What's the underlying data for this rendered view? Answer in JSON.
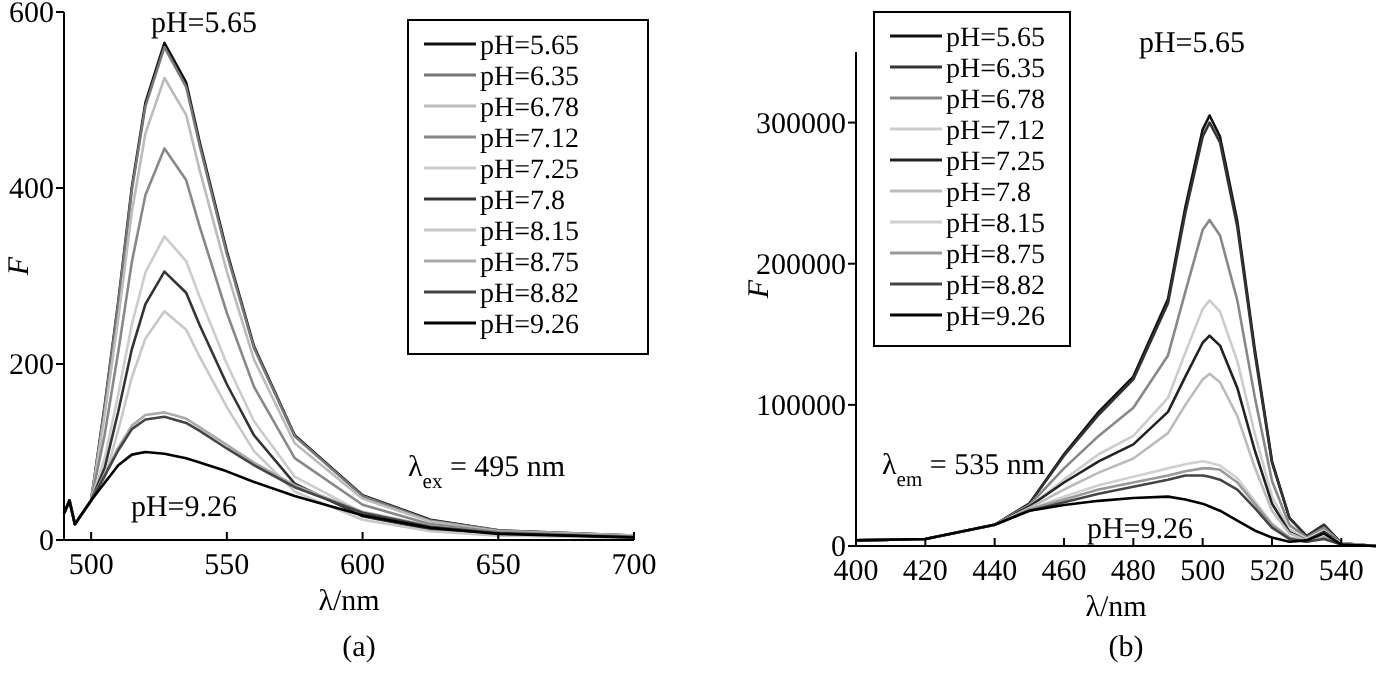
{
  "chart_data": [
    {
      "type": "line",
      "title": "(a)",
      "xlabel": "λ/nm",
      "ylabel": "F",
      "xlim": [
        490,
        700
      ],
      "xticks": [
        500,
        550,
        600,
        650,
        700
      ],
      "ylim": [
        0,
        600
      ],
      "yticks": [
        0,
        200,
        400,
        600
      ],
      "legend": "top right",
      "grid": false,
      "marker": "none",
      "line_style": "solid",
      "x": [
        490,
        492,
        494,
        500,
        505,
        510,
        515,
        520,
        527,
        535,
        540,
        550,
        560,
        575,
        600,
        625,
        650,
        700
      ],
      "series": [
        {
          "name": "pH=5.65",
          "color": "#111111",
          "values": [
            30,
            45,
            18,
            45,
            153,
            271,
            401,
            497,
            565,
            520,
            452,
            328,
            220,
            119,
            51,
            23,
            11,
            5
          ]
        },
        {
          "name": "pH=6.35",
          "color": "#777777",
          "values": [
            30,
            45,
            18,
            45,
            151,
            269,
            398,
            493,
            560,
            515,
            448,
            325,
            218,
            118,
            50,
            22,
            11,
            5
          ]
        },
        {
          "name": "pH=6.78",
          "color": "#bbbbbb",
          "values": [
            30,
            45,
            18,
            45,
            142,
            252,
            373,
            462,
            525,
            483,
            420,
            305,
            205,
            110,
            47,
            21,
            10,
            5
          ]
        },
        {
          "name": "pH=7.12",
          "color": "#888888",
          "values": [
            30,
            45,
            18,
            45,
            120,
            214,
            316,
            392,
            445,
            409,
            356,
            258,
            174,
            93,
            40,
            18,
            9,
            4
          ]
        },
        {
          "name": "pH=7.25",
          "color": "#cccccc",
          "values": [
            30,
            45,
            18,
            45,
            93,
            166,
            245,
            304,
            345,
            317,
            276,
            200,
            135,
            72,
            31,
            14,
            7,
            3
          ]
        },
        {
          "name": "pH=7.8",
          "color": "#333333",
          "values": [
            30,
            45,
            18,
            45,
            82,
            146,
            217,
            268,
            305,
            281,
            244,
            177,
            119,
            64,
            27,
            12,
            6,
            3
          ]
        },
        {
          "name": "pH=8.15",
          "color": "#c8c8c8",
          "values": [
            30,
            45,
            18,
            45,
            70,
            125,
            185,
            229,
            260,
            239,
            208,
            151,
            101,
            55,
            23,
            10,
            5,
            2
          ]
        },
        {
          "name": "pH=8.75",
          "color": "#aaaaaa",
          "values": [
            30,
            45,
            18,
            45,
            75,
            105,
            130,
            142,
            145,
            138,
            128,
            108,
            88,
            62,
            32,
            16,
            8,
            3
          ]
        },
        {
          "name": "pH=8.82",
          "color": "#444444",
          "values": [
            30,
            45,
            18,
            45,
            73,
            102,
            126,
            137,
            140,
            133,
            124,
            104,
            85,
            60,
            31,
            15,
            8,
            3
          ]
        },
        {
          "name": "pH=9.26",
          "color": "#000000",
          "values": [
            30,
            45,
            18,
            45,
            65,
            85,
            97,
            100,
            98,
            93,
            88,
            78,
            66,
            50,
            28,
            14,
            7,
            3
          ]
        }
      ],
      "annotations": [
        "pH=5.65",
        "pH=9.26",
        "λ$_{ex}$= 495 nm"
      ]
    },
    {
      "type": "line",
      "title": "(b)",
      "xlabel": "λ/nm",
      "ylabel": "F",
      "xlim": [
        400,
        550
      ],
      "xticks": [
        400,
        420,
        440,
        460,
        480,
        500,
        520,
        540
      ],
      "ylim": [
        0,
        350000
      ],
      "yticks": [
        0,
        100000,
        200000,
        300000
      ],
      "legend": "top left",
      "grid": false,
      "marker": "none",
      "line_style": "solid",
      "x": [
        400,
        420,
        440,
        450,
        460,
        470,
        480,
        490,
        495,
        500,
        502,
        505,
        510,
        515,
        520,
        525,
        530,
        535,
        540,
        550
      ],
      "series": [
        {
          "name": "pH=5.65",
          "color": "#111111",
          "values": [
            4000,
            5000,
            15000,
            30000,
            65000,
            95000,
            120000,
            175000,
            240000,
            295000,
            305000,
            290000,
            230000,
            140000,
            60000,
            20000,
            7000,
            15000,
            2000,
            0
          ]
        },
        {
          "name": "pH=6.35",
          "color": "#333333",
          "values": [
            4000,
            5000,
            15000,
            30000,
            64000,
            93000,
            118000,
            172000,
            236000,
            290000,
            300000,
            286000,
            226000,
            137000,
            59000,
            20000,
            7000,
            15000,
            2000,
            0
          ]
        },
        {
          "name": "pH=6.78",
          "color": "#888888",
          "values": [
            4000,
            5000,
            15000,
            29000,
            55000,
            78000,
            98000,
            135000,
            180000,
            224000,
            231000,
            220000,
            174000,
            106000,
            46000,
            15000,
            6000,
            13000,
            2000,
            0
          ]
        },
        {
          "name": "pH=7.12",
          "color": "#cccccc",
          "values": [
            4000,
            5000,
            15000,
            28000,
            47000,
            65000,
            78000,
            105000,
            137000,
            168000,
            174000,
            166000,
            131000,
            80000,
            35000,
            12000,
            5000,
            11000,
            2000,
            0
          ]
        },
        {
          "name": "pH=7.25",
          "color": "#222222",
          "values": [
            4000,
            5000,
            15000,
            28000,
            45000,
            60000,
            72000,
            95000,
            120000,
            144000,
            149000,
            142000,
            112000,
            68000,
            30000,
            10000,
            4000,
            10000,
            2000,
            0
          ]
        },
        {
          "name": "pH=7.8",
          "color": "#bbbbbb",
          "values": [
            4000,
            5000,
            15000,
            27000,
            40000,
            52000,
            62000,
            80000,
            100000,
            118000,
            122000,
            116000,
            92000,
            56000,
            25000,
            9000,
            4000,
            9000,
            2000,
            0
          ]
        },
        {
          "name": "pH=8.15",
          "color": "#d0d0d0",
          "values": [
            4000,
            5000,
            15000,
            26000,
            35000,
            43000,
            49000,
            55000,
            58000,
            60000,
            59000,
            57000,
            48000,
            32000,
            16000,
            6000,
            3000,
            7000,
            1000,
            0
          ]
        },
        {
          "name": "pH=8.75",
          "color": "#999999",
          "values": [
            4000,
            5000,
            15000,
            26000,
            33000,
            40000,
            45000,
            50000,
            53000,
            55000,
            55000,
            54000,
            45000,
            30000,
            15000,
            6000,
            3000,
            6000,
            1000,
            0
          ]
        },
        {
          "name": "pH=8.82",
          "color": "#444444",
          "values": [
            4000,
            5000,
            15000,
            25000,
            31000,
            37000,
            42000,
            47000,
            50000,
            50000,
            49000,
            47000,
            40000,
            27000,
            13000,
            5000,
            3000,
            5000,
            1000,
            0
          ]
        },
        {
          "name": "pH=9.26",
          "color": "#000000",
          "values": [
            4000,
            5000,
            15000,
            25000,
            29000,
            32000,
            34000,
            35000,
            33000,
            30000,
            28000,
            25000,
            18000,
            11000,
            6000,
            3000,
            4000,
            9000,
            1000,
            0
          ]
        }
      ],
      "annotations": [
        "pH=5.65",
        "pH=9.26",
        "λ$_{em}$= 535 nm"
      ]
    }
  ]
}
